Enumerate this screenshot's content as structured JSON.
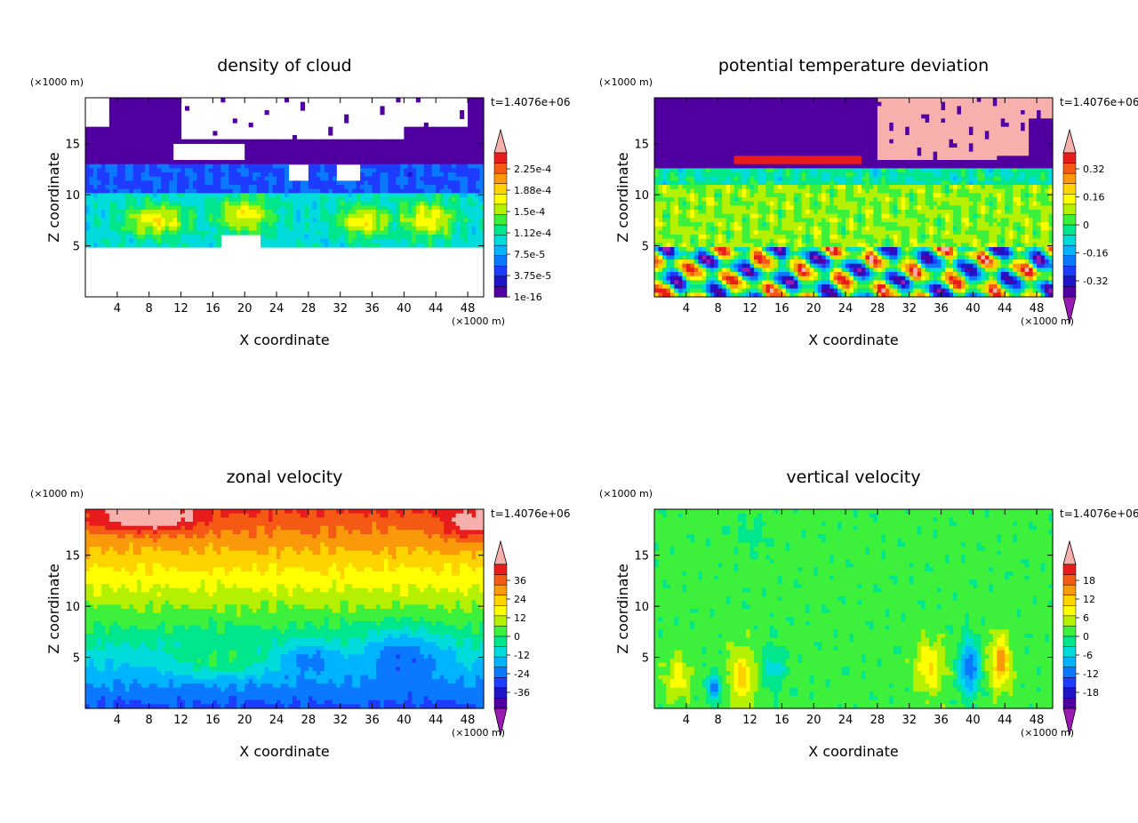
{
  "panels": [
    {
      "id": "cloud",
      "title": "density of cloud",
      "xlabel": "X coordinate",
      "ylabel": "Z coordinate",
      "x_unit": "(×1000 m)",
      "y_unit": "(×1000 m)",
      "time_label": "t=1.4076e+06",
      "x_ticks": [
        "4",
        "8",
        "12",
        "16",
        "20",
        "24",
        "28",
        "32",
        "36",
        "40",
        "44",
        "48"
      ],
      "y_ticks": [
        "5",
        "10",
        "15"
      ],
      "colorbar_labels": [
        "2.25e-4",
        "1.88e-4",
        "1.5e-4",
        "1.12e-4",
        "7.5e-5",
        "3.75e-5",
        "1e-16"
      ],
      "colorbar_colors": [
        "#f8b0ac",
        "#e81c1c",
        "#f45a14",
        "#fa9a0a",
        "#fdd400",
        "#ffff00",
        "#b4f000",
        "#3cf03c",
        "#00e68c",
        "#00dcdc",
        "#00b4ff",
        "#0a78ff",
        "#1e3cff",
        "#1e14c8",
        "#5000a0"
      ],
      "colorbar_arrows": "top"
    },
    {
      "id": "theta",
      "title": "potential temperature deviation",
      "xlabel": "X coordinate",
      "ylabel": "Z coordinate",
      "x_unit": "(×1000 m)",
      "y_unit": "(×1000 m)",
      "time_label": "t=1.4076e+06",
      "x_ticks": [
        "4",
        "8",
        "12",
        "16",
        "20",
        "24",
        "28",
        "32",
        "36",
        "40",
        "44",
        "48"
      ],
      "y_ticks": [
        "5",
        "10",
        "15"
      ],
      "colorbar_labels": [
        "0.32",
        "0.16",
        "0",
        "-0.16",
        "-0.32"
      ],
      "colorbar_colors": [
        "#f8b0ac",
        "#e81c1c",
        "#f45a14",
        "#fa9a0a",
        "#fdd400",
        "#ffff00",
        "#b4f000",
        "#3cf03c",
        "#00e68c",
        "#00dcdc",
        "#00b4ff",
        "#0a78ff",
        "#1e3cff",
        "#1e14c8",
        "#5000a0",
        "#9a1ab4"
      ],
      "colorbar_arrows": "both"
    },
    {
      "id": "u",
      "title": "zonal velocity",
      "xlabel": "X coordinate",
      "ylabel": "Z coordinate",
      "x_unit": "(×1000 m)",
      "y_unit": "(×1000 m)",
      "time_label": "t=1.4076e+06",
      "x_ticks": [
        "4",
        "8",
        "12",
        "16",
        "20",
        "24",
        "28",
        "32",
        "36",
        "40",
        "44",
        "48"
      ],
      "y_ticks": [
        "5",
        "10",
        "15"
      ],
      "colorbar_labels": [
        "36",
        "24",
        "12",
        "0",
        "-12",
        "-24",
        "-36"
      ],
      "colorbar_colors": [
        "#f8b0ac",
        "#e81c1c",
        "#f45a14",
        "#fa9a0a",
        "#fdd400",
        "#ffff00",
        "#b4f000",
        "#3cf03c",
        "#00e68c",
        "#00dcdc",
        "#00b4ff",
        "#0a78ff",
        "#1e3cff",
        "#1e14c8",
        "#5000a0",
        "#9a1ab4"
      ],
      "colorbar_arrows": "both"
    },
    {
      "id": "w",
      "title": "vertical velocity",
      "xlabel": "X coordinate",
      "ylabel": "Z coordinate",
      "x_unit": "(×1000 m)",
      "y_unit": "(×1000 m)",
      "time_label": "t=1.4076e+06",
      "x_ticks": [
        "4",
        "8",
        "12",
        "16",
        "20",
        "24",
        "28",
        "32",
        "36",
        "40",
        "44",
        "48"
      ],
      "y_ticks": [
        "5",
        "10",
        "15"
      ],
      "colorbar_labels": [
        "18",
        "12",
        "6",
        "0",
        "-6",
        "-12",
        "-18"
      ],
      "colorbar_colors": [
        "#f8b0ac",
        "#e81c1c",
        "#f45a14",
        "#fa9a0a",
        "#fdd400",
        "#ffff00",
        "#b4f000",
        "#3cf03c",
        "#00e68c",
        "#00dcdc",
        "#00b4ff",
        "#0a78ff",
        "#1e3cff",
        "#1e14c8",
        "#5000a0",
        "#9a1ab4"
      ],
      "colorbar_arrows": "both"
    }
  ],
  "chart_data": [
    {
      "type": "heatmap",
      "title": "density of cloud",
      "xlabel": "X coordinate",
      "ylabel": "Z coordinate",
      "xlim": [
        0,
        50
      ],
      "ylim": [
        0,
        19.5
      ],
      "colorbar_levels": [
        1e-16,
        3.75e-05,
        7.5e-05,
        0.000112,
        0.00015,
        0.000188,
        0.000225
      ],
      "cloud_base_z": 5,
      "cloud_top_z": 19.5
    },
    {
      "type": "heatmap",
      "title": "potential temperature deviation",
      "xlabel": "X coordinate",
      "ylabel": "Z coordinate",
      "xlim": [
        0,
        50
      ],
      "ylim": [
        0,
        19.5
      ],
      "colorbar_levels": [
        -0.32,
        -0.16,
        0,
        0.16,
        0.32
      ]
    },
    {
      "type": "heatmap",
      "title": "zonal velocity",
      "xlabel": "X coordinate",
      "ylabel": "Z coordinate",
      "xlim": [
        0,
        50
      ],
      "ylim": [
        0,
        19.5
      ],
      "colorbar_levels": [
        -36,
        -24,
        -12,
        0,
        12,
        24,
        36
      ]
    },
    {
      "type": "heatmap",
      "title": "vertical velocity",
      "xlabel": "X coordinate",
      "ylabel": "Z coordinate",
      "xlim": [
        0,
        50
      ],
      "ylim": [
        0,
        19.5
      ],
      "colorbar_levels": [
        -18,
        -12,
        -6,
        0,
        6,
        12,
        18
      ]
    }
  ]
}
